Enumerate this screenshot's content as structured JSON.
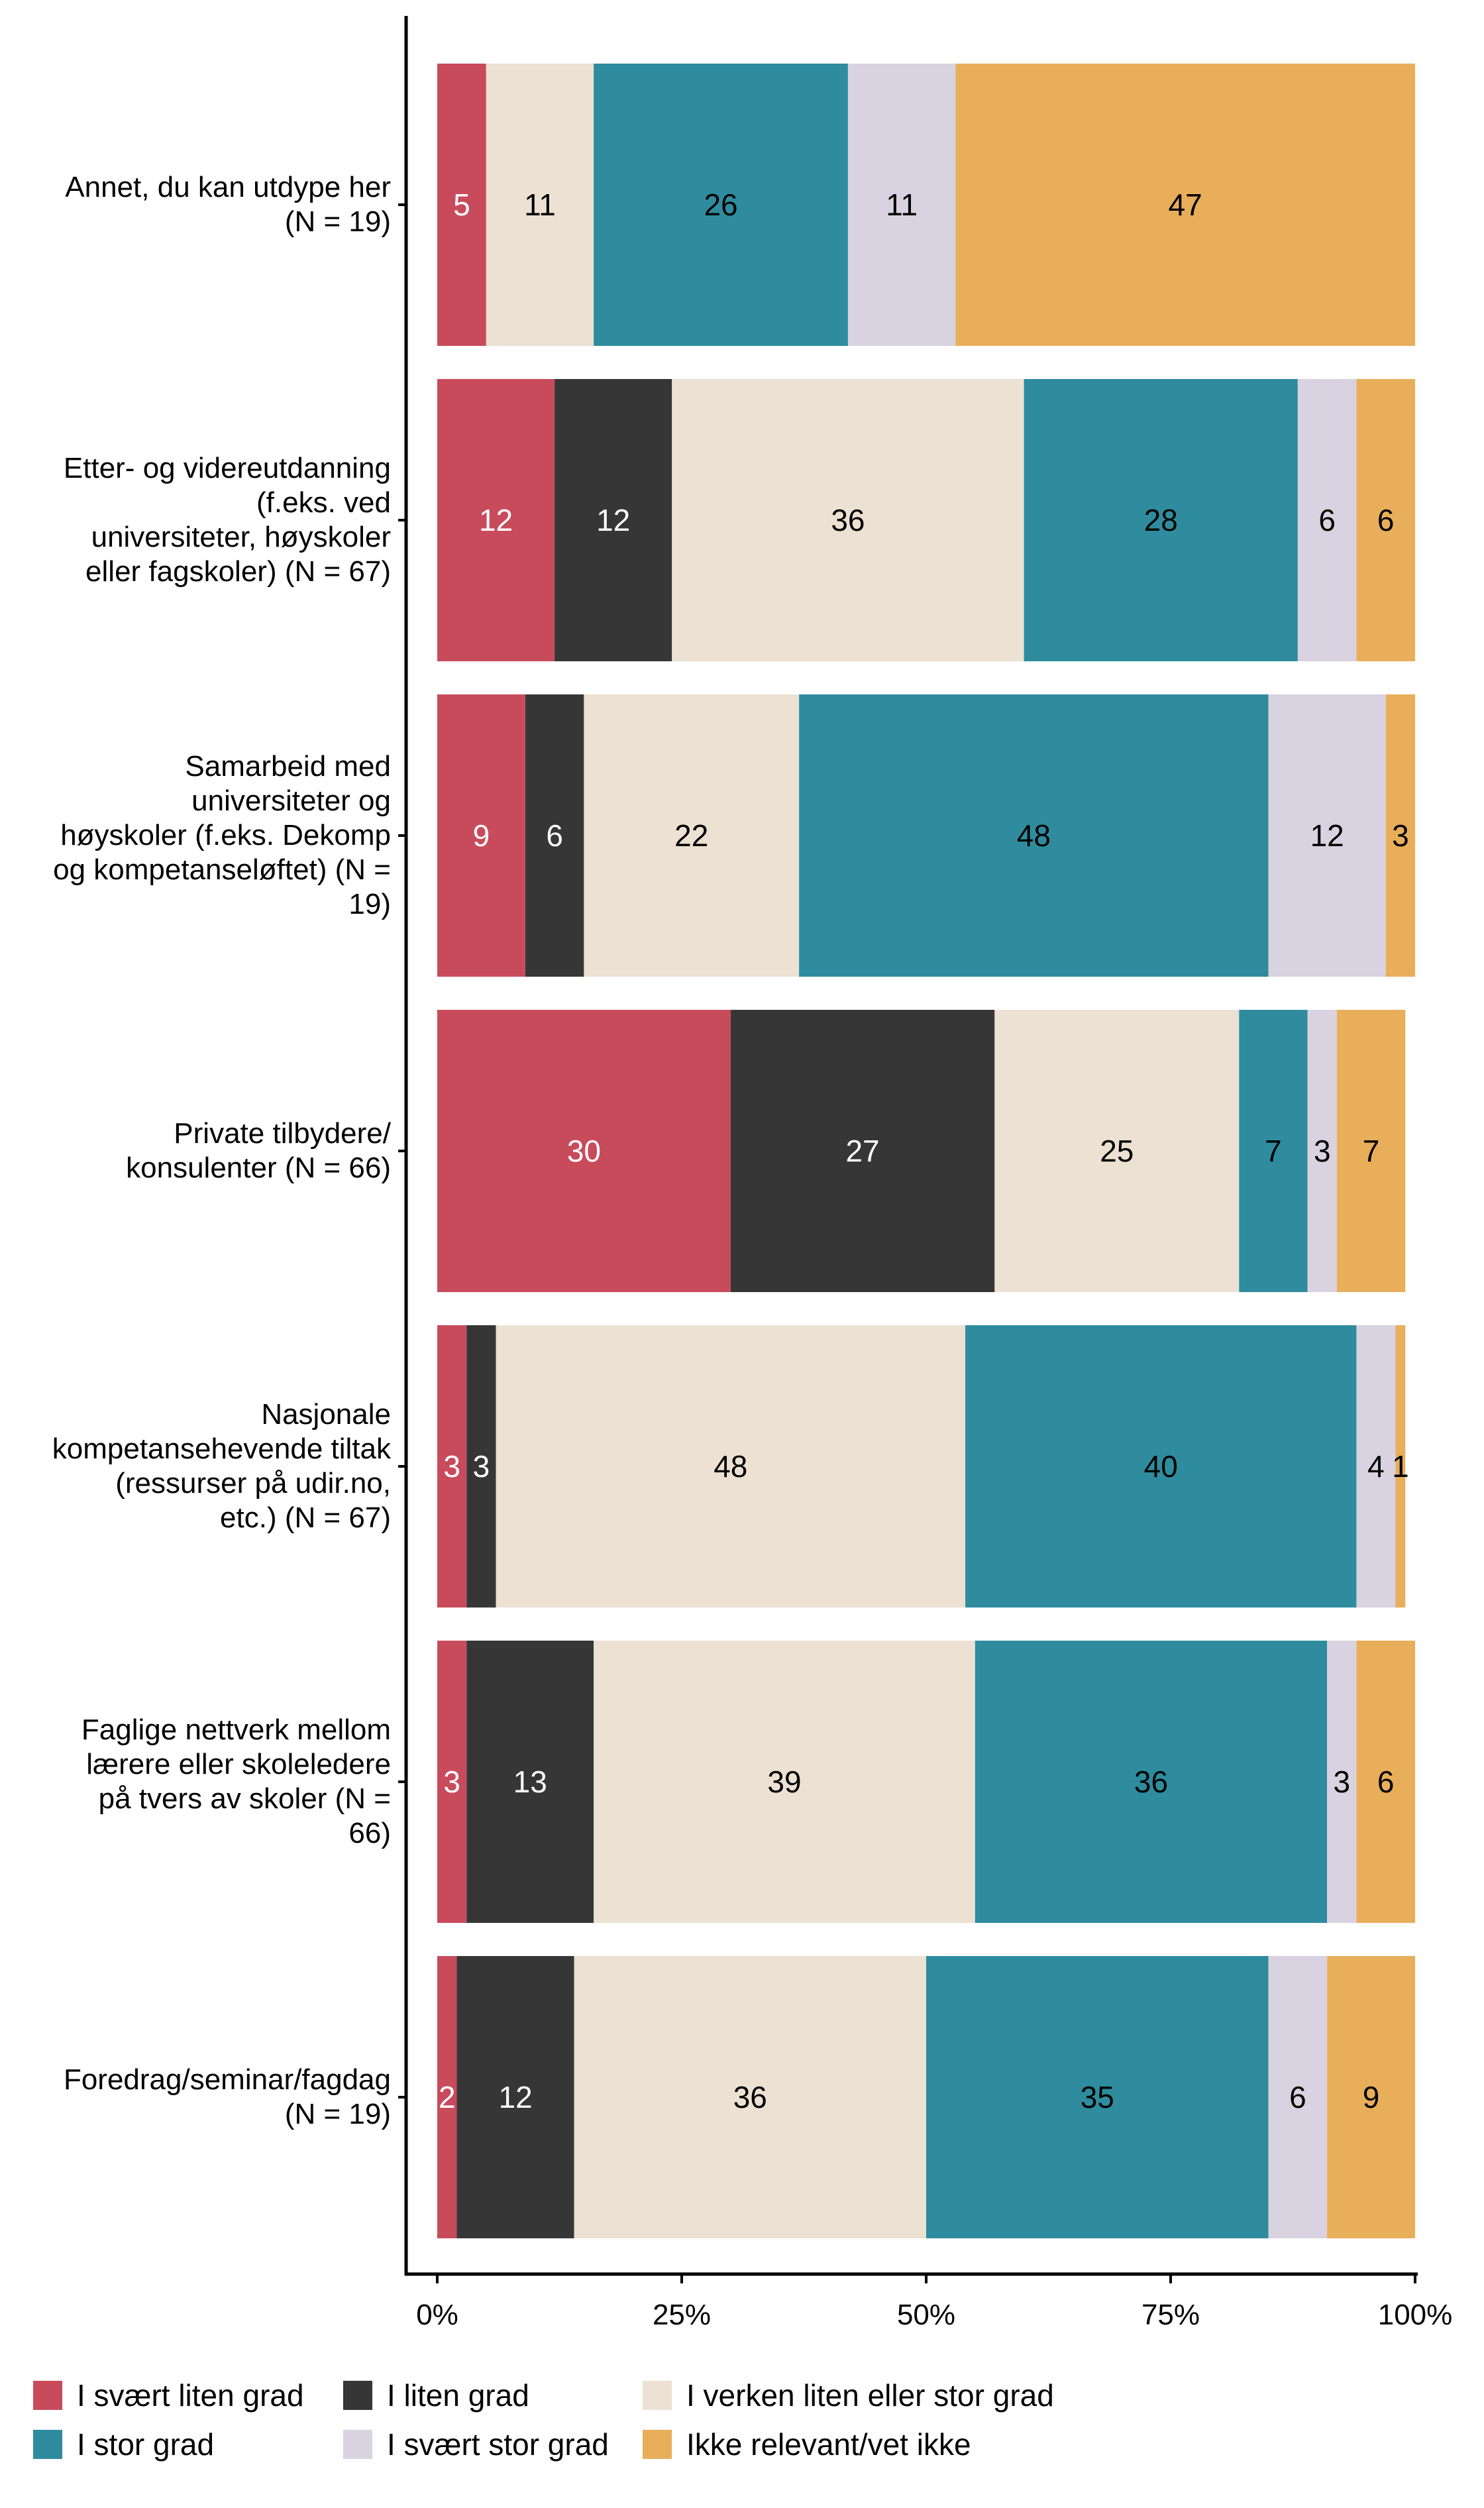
{
  "chart_data": {
    "type": "bar",
    "orientation": "horizontal",
    "stacked": true,
    "percent": true,
    "title": "",
    "xlabel": "",
    "ylabel": "",
    "xlim": [
      0,
      100
    ],
    "x_ticks": [
      "0%",
      "25%",
      "50%",
      "75%",
      "100%"
    ],
    "x_tick_values": [
      0,
      25,
      50,
      75,
      100
    ],
    "grid": false,
    "legend_position": "bottom",
    "categories": [
      "Annet, du kan utdype her (N = 19)",
      "Etter- og videreutdanning (f.eks. ved universiteter, høyskoler eller fagskoler) (N = 67)",
      "Samarbeid med universiteter og høyskoler (f.eks. Dekomp og kompetanseløftet) (N = 19)",
      "Private tilbydere/ konsulenter (N = 66)",
      "Nasjonale kompetansehevende tiltak (ressurser på udir.no, etc.) (N = 67)",
      "Faglige nettverk mellom lærere eller skoleledere på tvers av skoler (N = 66)",
      "Foredrag/seminar/fagdag (N = 19)"
    ],
    "category_lines": [
      [
        "Annet, du kan utdype her",
        "(N = 19)"
      ],
      [
        "Etter- og videreutdanning",
        "(f.eks. ved",
        "universiteter, høyskoler",
        "eller fagskoler) (N = 67)"
      ],
      [
        "Samarbeid med",
        "universiteter og",
        "høyskoler (f.eks. Dekomp",
        "og kompetanseløftet) (N =",
        "19)"
      ],
      [
        "Private tilbydere/",
        "konsulenter (N = 66)"
      ],
      [
        "Nasjonale",
        "kompetansehevende tiltak",
        "(ressurser på udir.no,",
        "etc.) (N = 67)"
      ],
      [
        "Faglige nettverk mellom",
        "lærere eller skoleledere",
        "på tvers av skoler (N =",
        "66)"
      ],
      [
        "Foredrag/seminar/fagdag",
        "(N = 19)"
      ]
    ],
    "series": [
      {
        "name": "I svært liten grad",
        "color": "#C84B5C",
        "label_color": "#FFFFFF",
        "values": [
          5,
          12,
          9,
          30,
          3,
          3,
          2
        ]
      },
      {
        "name": "I liten grad",
        "color": "#363636",
        "label_color": "#FFFFFF",
        "values": [
          0,
          12,
          6,
          27,
          3,
          13,
          12
        ]
      },
      {
        "name": "I verken liten eller stor grad",
        "color": "#ECE1D2",
        "label_color": "#000000",
        "values": [
          11,
          36,
          22,
          25,
          48,
          39,
          36
        ]
      },
      {
        "name": "I stor grad",
        "color": "#2E8C9E",
        "label_color": "#000000",
        "values": [
          26,
          28,
          48,
          7,
          40,
          36,
          35
        ]
      },
      {
        "name": "I svært stor grad",
        "color": "#D9D2E0",
        "label_color": "#000000",
        "values": [
          11,
          6,
          12,
          3,
          4,
          3,
          6
        ]
      },
      {
        "name": "Ikke relevant/vet ikke",
        "color": "#E8AE5A",
        "label_color": "#000000",
        "values": [
          47,
          6,
          3,
          7,
          1,
          6,
          9
        ]
      }
    ]
  },
  "legend": {
    "items": [
      {
        "label": "I svært liten grad",
        "color": "#C84B5C"
      },
      {
        "label": "I liten grad",
        "color": "#363636"
      },
      {
        "label": "I verken liten eller stor grad",
        "color": "#ECE1D2"
      },
      {
        "label": "I stor grad",
        "color": "#2E8C9E"
      },
      {
        "label": "I svært stor grad",
        "color": "#D9D2E0"
      },
      {
        "label": "Ikke relevant/vet ikke",
        "color": "#E8AE5A"
      }
    ]
  }
}
